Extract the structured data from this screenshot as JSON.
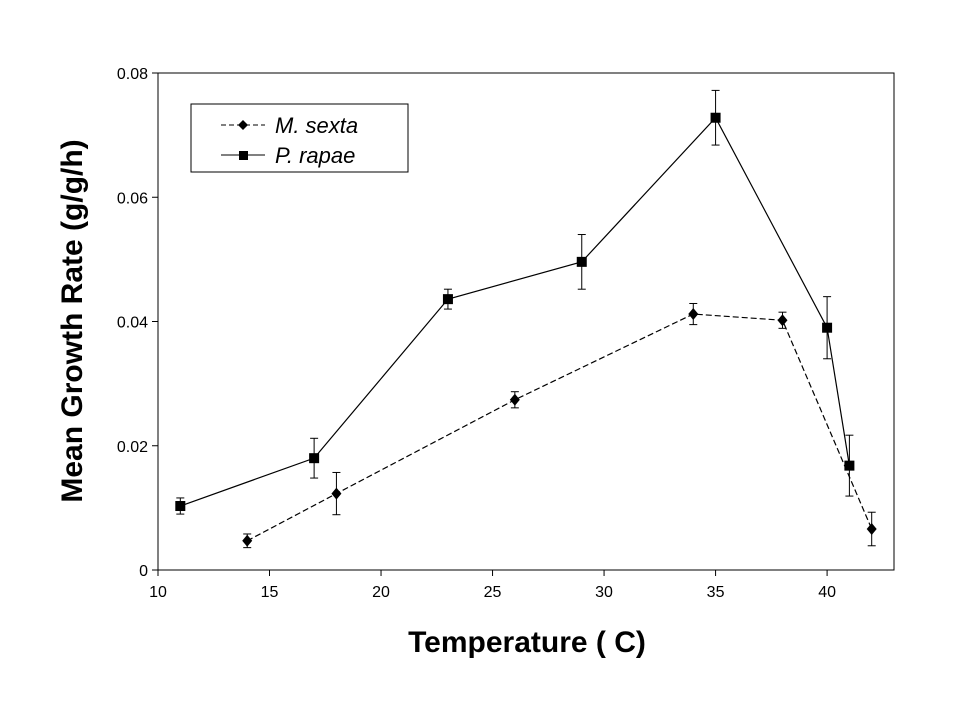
{
  "chart_data": {
    "type": "line",
    "title": "",
    "xlabel": "Temperature ( C)",
    "ylabel": "Mean Growth Rate (g/g/h)",
    "xlim": [
      10,
      43
    ],
    "ylim": [
      0,
      0.08
    ],
    "xticks": [
      10,
      15,
      20,
      25,
      30,
      35,
      40
    ],
    "yticks": [
      0,
      0.02,
      0.04,
      0.06,
      0.08
    ],
    "ytick_labels": [
      "0",
      "0.02",
      "0.04",
      "0.06",
      "0.08"
    ],
    "grid": false,
    "legend_position": "top-left",
    "series": [
      {
        "name": "M. sexta",
        "marker": "diamond",
        "line_style": "dashed",
        "points": [
          {
            "x": 14,
            "y": 0.0047,
            "err": 0.0011
          },
          {
            "x": 18,
            "y": 0.0123,
            "err": 0.0034
          },
          {
            "x": 26,
            "y": 0.0274,
            "err": 0.0013
          },
          {
            "x": 34,
            "y": 0.0412,
            "err": 0.0017
          },
          {
            "x": 38,
            "y": 0.0402,
            "err": 0.0013
          },
          {
            "x": 42,
            "y": 0.0066,
            "err": 0.0027
          }
        ]
      },
      {
        "name": "P. rapae",
        "marker": "square",
        "line_style": "solid",
        "points": [
          {
            "x": 11,
            "y": 0.0103,
            "err": 0.0013
          },
          {
            "x": 17,
            "y": 0.018,
            "err": 0.0032
          },
          {
            "x": 23,
            "y": 0.0436,
            "err": 0.0016
          },
          {
            "x": 29,
            "y": 0.0496,
            "err": 0.0044
          },
          {
            "x": 35,
            "y": 0.0728,
            "err": 0.0044
          },
          {
            "x": 40,
            "y": 0.039,
            "err": 0.005
          },
          {
            "x": 41,
            "y": 0.0168,
            "err": 0.0049
          }
        ]
      }
    ]
  }
}
